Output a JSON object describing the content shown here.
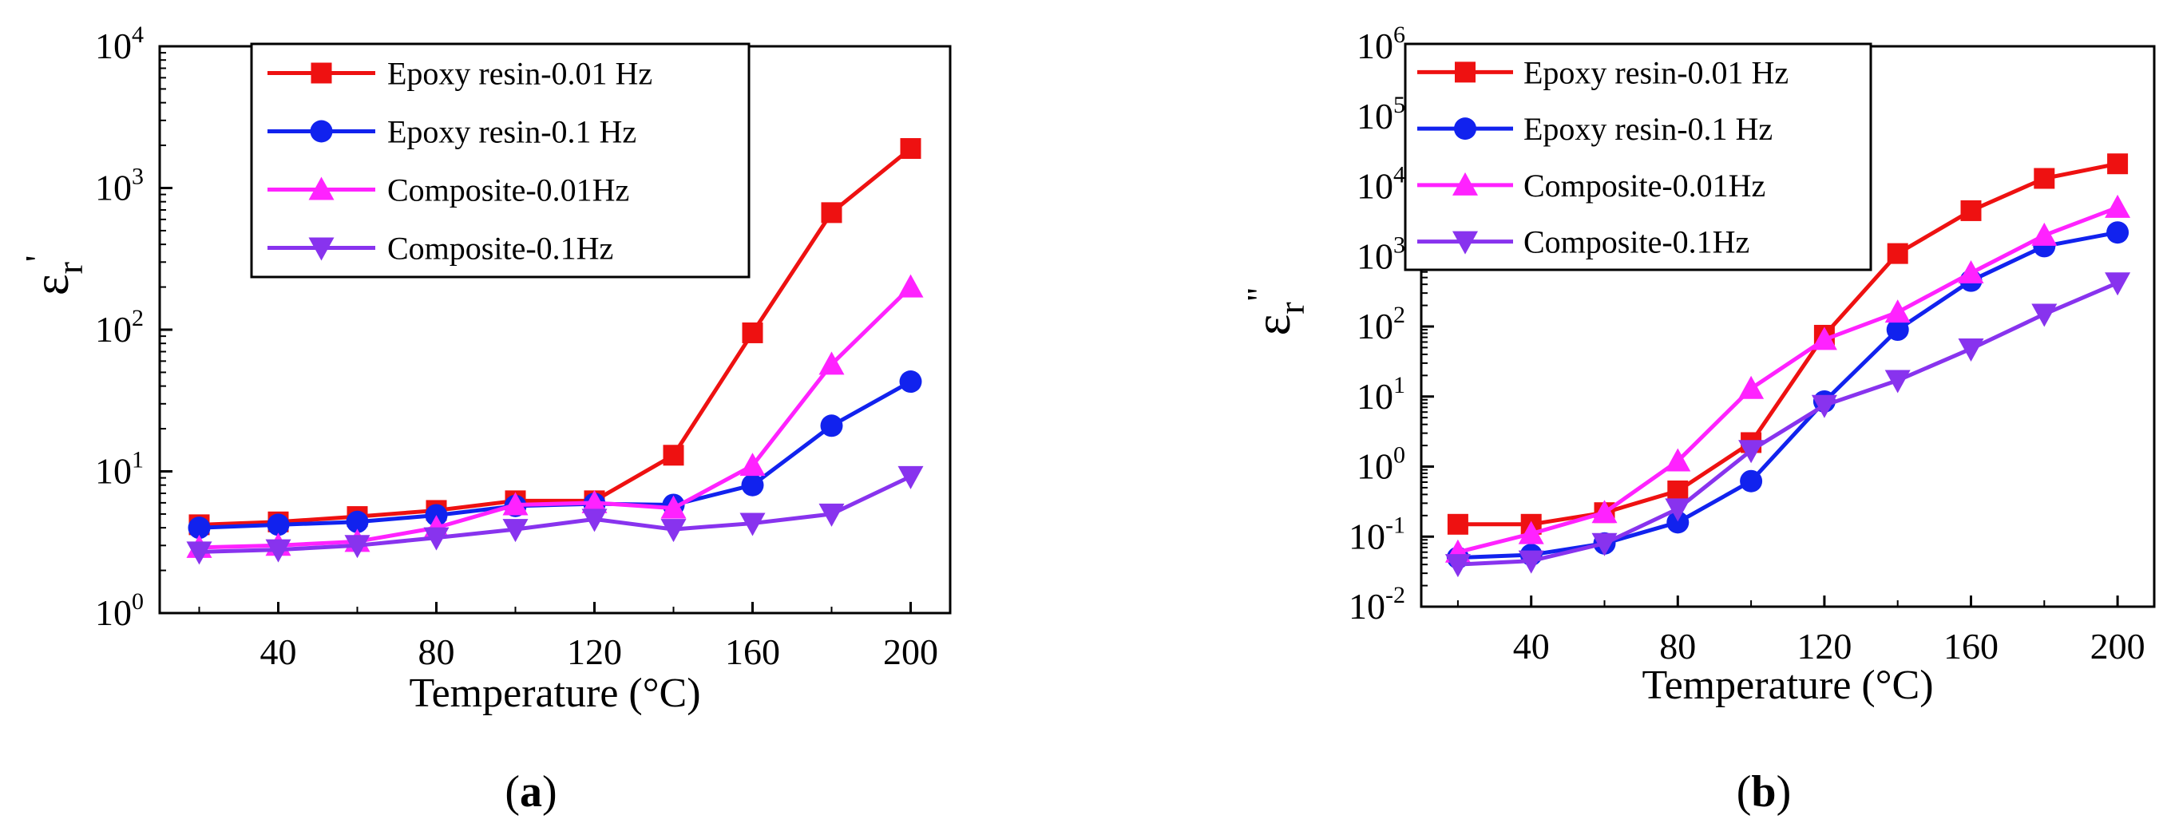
{
  "chart_data": [
    {
      "type": "line",
      "panel_label": "a",
      "xlabel": "Temperature (°C)",
      "ylabel": "ε",
      "ylabel_sub": "r",
      "ylabel_sup": "'",
      "yscale": "log",
      "xlim": [
        10,
        210
      ],
      "ylim": [
        1,
        10000
      ],
      "x_ticks": [
        40,
        80,
        120,
        160,
        200
      ],
      "y_tick_exponents": [
        0,
        1,
        2,
        3,
        4
      ],
      "y_tick_base": "10",
      "legend_position": "top-center",
      "x": [
        20,
        40,
        60,
        80,
        100,
        120,
        140,
        160,
        180,
        200
      ],
      "series": [
        {
          "name": "Epoxy resin-0.01 Hz",
          "color": "#ee1111",
          "marker": "square",
          "values": [
            4.2,
            4.4,
            4.8,
            5.3,
            6.2,
            6.2,
            13,
            95,
            670,
            1900
          ]
        },
        {
          "name": "Epoxy resin-0.1 Hz",
          "color": "#1122ee",
          "marker": "circle",
          "values": [
            4.0,
            4.2,
            4.4,
            4.9,
            5.7,
            5.9,
            5.8,
            8.0,
            21,
            43
          ]
        },
        {
          "name": "Composite-0.01Hz",
          "color": "#ff22ff",
          "marker": "triangle-up",
          "values": [
            2.9,
            3.0,
            3.2,
            4.0,
            5.8,
            6.0,
            5.5,
            11,
            57,
            200
          ]
        },
        {
          "name": "Composite-0.1Hz",
          "color": "#8833ee",
          "marker": "triangle-down",
          "values": [
            2.7,
            2.8,
            3.0,
            3.4,
            3.9,
            4.6,
            3.9,
            4.3,
            5.0,
            9.2
          ]
        }
      ]
    },
    {
      "type": "line",
      "panel_label": "b",
      "xlabel": "Temperature (°C)",
      "ylabel": "ε",
      "ylabel_sub": "r",
      "ylabel_sup": "\"",
      "yscale": "log",
      "xlim": [
        10,
        210
      ],
      "ylim": [
        0.01,
        1000000
      ],
      "x_ticks": [
        40,
        80,
        120,
        160,
        200
      ],
      "y_tick_exponents": [
        -2,
        -1,
        0,
        1,
        2,
        3,
        4,
        5,
        6
      ],
      "y_tick_base": "10",
      "legend_position": "top-left",
      "x": [
        20,
        40,
        60,
        80,
        100,
        120,
        140,
        160,
        180,
        200
      ],
      "series": [
        {
          "name": "Epoxy resin-0.01 Hz",
          "color": "#ee1111",
          "marker": "square",
          "values": [
            0.15,
            0.15,
            0.22,
            0.45,
            2.2,
            75,
            1100,
            4500,
            13000,
            21000
          ]
        },
        {
          "name": "Epoxy resin-0.1 Hz",
          "color": "#1122ee",
          "marker": "circle",
          "values": [
            0.05,
            0.055,
            0.08,
            0.16,
            0.62,
            8.5,
            90,
            450,
            1400,
            2200
          ]
        },
        {
          "name": "Composite-0.01Hz",
          "color": "#ff22ff",
          "marker": "triangle-up",
          "values": [
            0.06,
            0.11,
            0.22,
            1.2,
            13,
            65,
            160,
            580,
            2000,
            5000
          ]
        },
        {
          "name": "Composite-0.1Hz",
          "color": "#8833ee",
          "marker": "triangle-down",
          "values": [
            0.04,
            0.045,
            0.08,
            0.25,
            1.7,
            7.5,
            17,
            48,
            150,
            420
          ]
        }
      ]
    }
  ]
}
